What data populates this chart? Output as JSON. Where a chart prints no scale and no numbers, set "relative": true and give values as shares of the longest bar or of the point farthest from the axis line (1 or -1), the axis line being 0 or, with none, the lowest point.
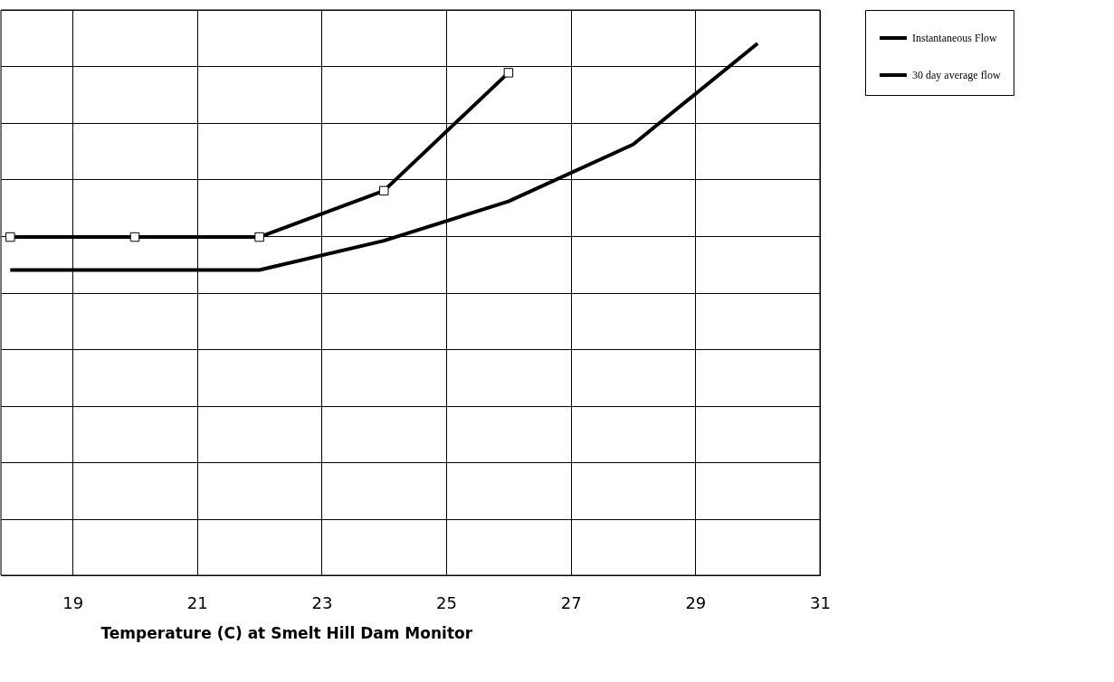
{
  "chart_data": {
    "type": "line",
    "xlabel": "Temperature (C) at Smelt Hill Dam Monitor",
    "relative": true,
    "xlim": [
      17.85,
      31
    ],
    "xticks": [
      19,
      21,
      23,
      25,
      27,
      29,
      31
    ],
    "grid": true,
    "legend": "right",
    "series": [
      {
        "name": "Instantaneous Flow",
        "color": "#000000",
        "x": [
          18,
          22,
          24,
          26,
          28,
          30
        ],
        "values": [
          0.574,
          0.574,
          0.629,
          0.703,
          0.81,
          1
        ],
        "marker": "none"
      },
      {
        "name": "30 day average flow",
        "color": "#000000",
        "x": [
          18,
          20,
          22,
          24,
          26
        ],
        "values": [
          0.636,
          0.636,
          0.636,
          0.723,
          0.945
        ],
        "marker": "square"
      }
    ]
  }
}
